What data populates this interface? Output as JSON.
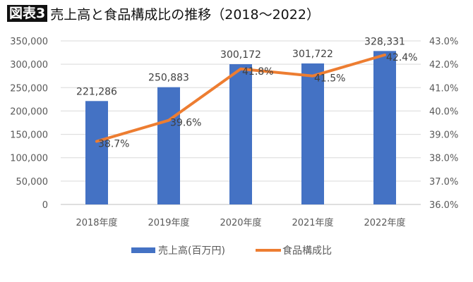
{
  "title": {
    "badge": "図表3",
    "text": "売上高と食品構成比の推移（2018〜2022）"
  },
  "chart_data": {
    "type": "bar+line",
    "categories": [
      "2018年度",
      "2019年度",
      "2020年度",
      "2021年度",
      "2022年度"
    ],
    "series": [
      {
        "name": "売上高(百万円)",
        "type": "bar",
        "axis": "left",
        "color": "#4472C4",
        "values": [
          221286,
          250883,
          300172,
          301722,
          328331
        ],
        "labels": [
          "221,286",
          "250,883",
          "300,172",
          "301,722",
          "328,331"
        ]
      },
      {
        "name": "食品構成比",
        "type": "line",
        "axis": "right",
        "color": "#ED7D31",
        "values": [
          38.7,
          39.6,
          41.8,
          41.5,
          42.4
        ],
        "labels": [
          "38.7%",
          "39.6%",
          "41.8%",
          "41.5%",
          "42.4%"
        ]
      }
    ],
    "left_axis": {
      "range": [
        0,
        350000
      ],
      "ticks": [
        "0",
        "50,000",
        "100,000",
        "150,000",
        "200,000",
        "250,000",
        "300,000",
        "350,000"
      ]
    },
    "right_axis": {
      "range": [
        36,
        43
      ],
      "ticks": [
        "36.0%",
        "37.0%",
        "38.0%",
        "39.0%",
        "40.0%",
        "41.0%",
        "42.0%",
        "43.0%"
      ]
    },
    "grid": true,
    "legend": "bottom"
  }
}
